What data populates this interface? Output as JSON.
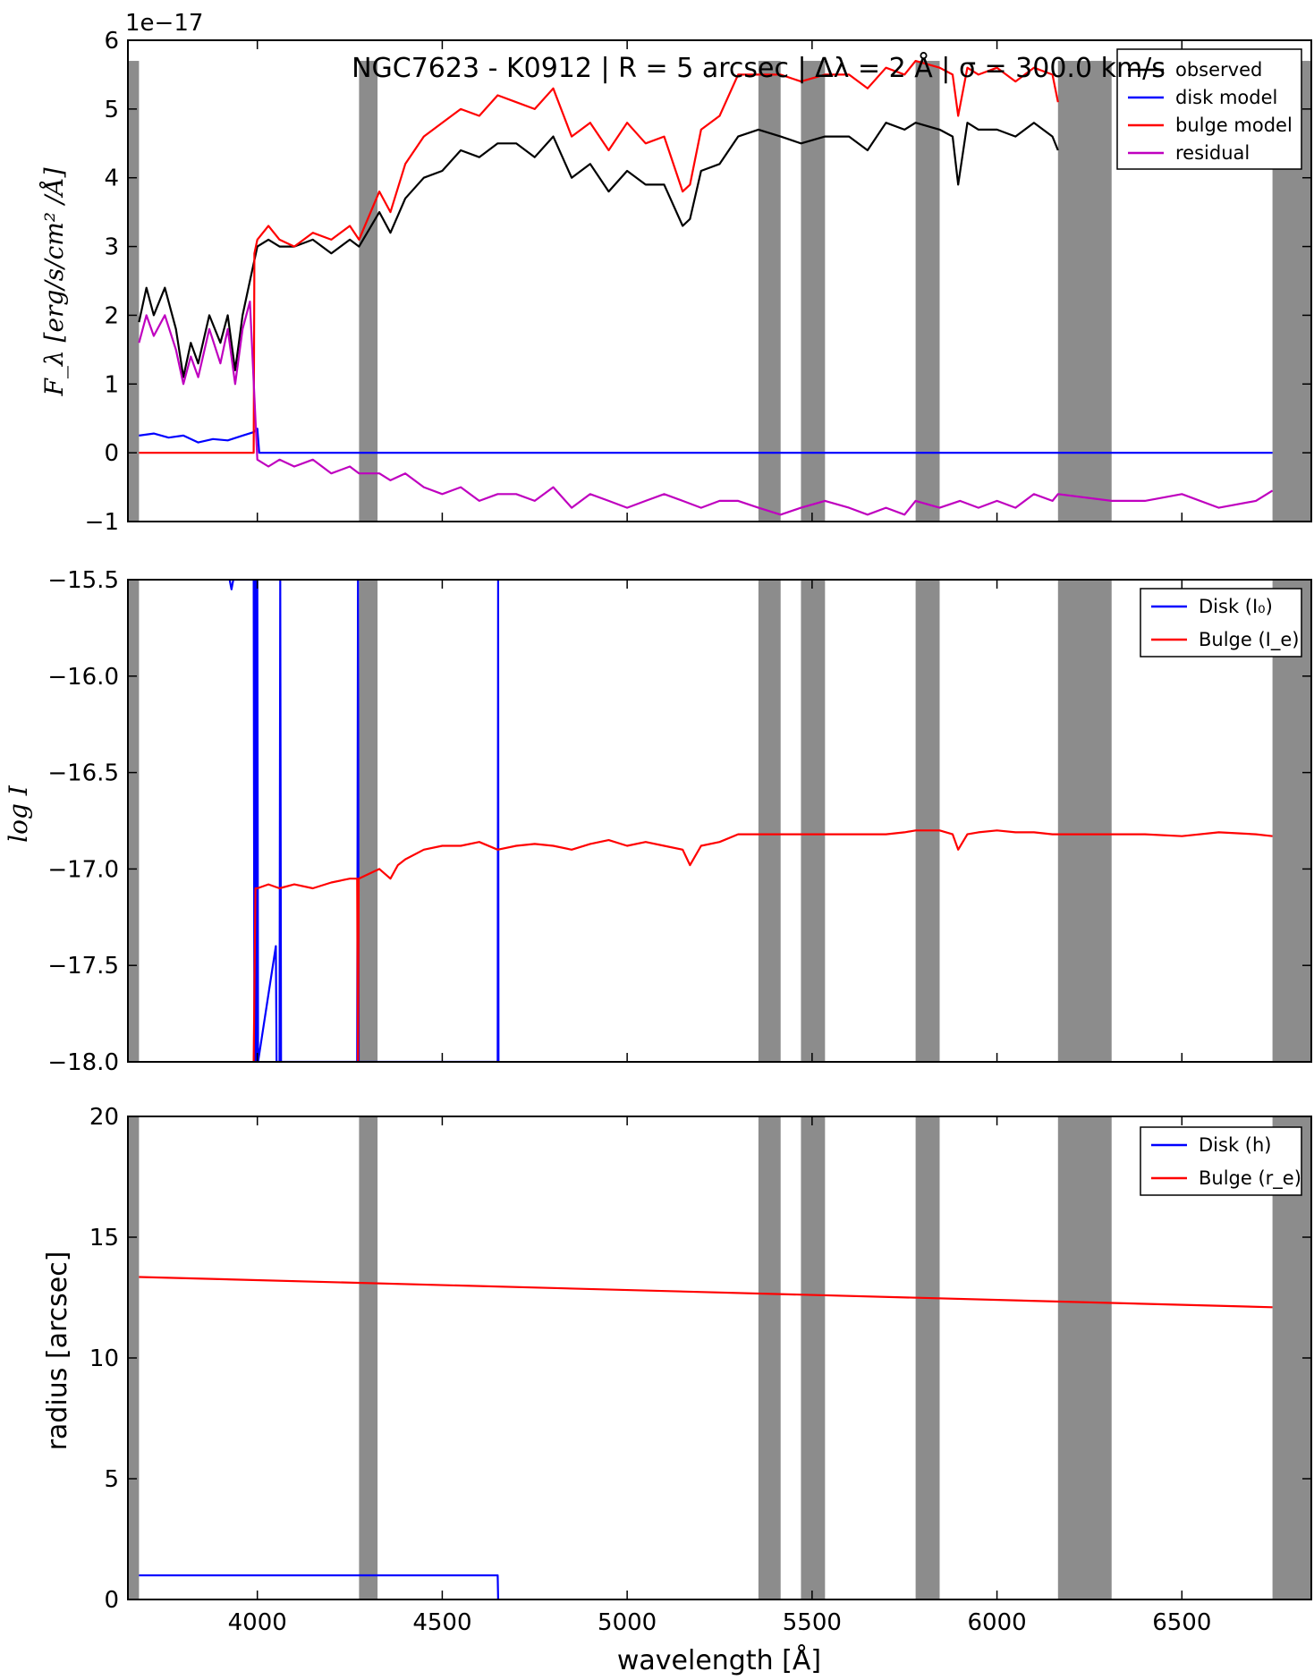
{
  "chart_data": [
    {
      "type": "line",
      "title": "NGC7623 - K0912 | R = 5 arcsec | Δλ = 2 Å | σ = 300.0 km/s",
      "xlabel": "",
      "ylabel": "F_λ [erg/s/cm² /Å]",
      "y_offset_label": "1e−17",
      "xlim": [
        3650,
        6850
      ],
      "ylim": [
        -1,
        6
      ],
      "yticks": [
        -1,
        0,
        1,
        2,
        3,
        4,
        5,
        6
      ],
      "ytick_labels": [
        "−1",
        "0",
        "1",
        "2",
        "3",
        "4",
        "5",
        "6"
      ],
      "grid": false,
      "legend_placement": "top-right",
      "masked_regions": [
        [
          3650,
          3680
        ],
        [
          4275,
          4325
        ],
        [
          5355,
          5415
        ],
        [
          5470,
          5535
        ],
        [
          5780,
          5845
        ],
        [
          6165,
          6310
        ],
        [
          6745,
          6850
        ]
      ],
      "series": [
        {
          "name": "observed",
          "color": "#000000",
          "x": [
            3680,
            3700,
            3720,
            3750,
            3780,
            3800,
            3820,
            3840,
            3870,
            3900,
            3920,
            3940,
            3960,
            3980,
            4000,
            4030,
            4060,
            4100,
            4150,
            4200,
            4250,
            4275,
            4330,
            4360,
            4400,
            4450,
            4500,
            4550,
            4600,
            4650,
            4700,
            4750,
            4800,
            4850,
            4900,
            4950,
            5000,
            5050,
            5100,
            5150,
            5170,
            5200,
            5250,
            5300,
            5355,
            5415,
            5470,
            5535,
            5600,
            5650,
            5700,
            5750,
            5780,
            5845,
            5880,
            5895,
            5920,
            5950,
            6000,
            6050,
            6100,
            6150,
            6165
          ],
          "y": [
            1.9,
            2.4,
            2.0,
            2.4,
            1.8,
            1.1,
            1.6,
            1.3,
            2.0,
            1.6,
            2.0,
            1.2,
            2.0,
            2.5,
            3.0,
            3.1,
            3.0,
            3.0,
            3.1,
            2.9,
            3.1,
            3.0,
            3.5,
            3.2,
            3.7,
            4.0,
            4.1,
            4.4,
            4.3,
            4.5,
            4.5,
            4.3,
            4.6,
            4.0,
            4.2,
            3.8,
            4.1,
            3.9,
            3.9,
            3.3,
            3.4,
            4.1,
            4.2,
            4.6,
            4.7,
            4.6,
            4.5,
            4.6,
            4.6,
            4.4,
            4.8,
            4.7,
            4.8,
            4.7,
            4.6,
            3.9,
            4.8,
            4.7,
            4.7,
            4.6,
            4.8,
            4.6,
            4.4
          ]
        },
        {
          "name": "disk model",
          "color": "#0000ff",
          "x": [
            3680,
            3720,
            3760,
            3800,
            3840,
            3880,
            3920,
            3960,
            3990,
            4000,
            4005,
            4275,
            4330,
            6745
          ],
          "y": [
            0.25,
            0.28,
            0.22,
            0.25,
            0.15,
            0.2,
            0.18,
            0.25,
            0.3,
            0.35,
            0.0,
            0.0,
            0.0,
            0.0
          ]
        },
        {
          "name": "bulge model",
          "color": "#ff0000",
          "x": [
            3680,
            3990,
            3992,
            4000,
            4030,
            4060,
            4100,
            4150,
            4200,
            4250,
            4275,
            4330,
            4360,
            4400,
            4450,
            4500,
            4550,
            4600,
            4650,
            4700,
            4750,
            4800,
            4850,
            4900,
            4950,
            5000,
            5050,
            5100,
            5150,
            5170,
            5200,
            5250,
            5300,
            5355,
            5415,
            5470,
            5535,
            5600,
            5650,
            5700,
            5750,
            5780,
            5845,
            5880,
            5895,
            5920,
            5950,
            6000,
            6050,
            6100,
            6150,
            6165
          ],
          "y": [
            0.0,
            0.0,
            2.9,
            3.1,
            3.3,
            3.1,
            3.0,
            3.2,
            3.1,
            3.3,
            3.1,
            3.8,
            3.5,
            4.2,
            4.6,
            4.8,
            5.0,
            4.9,
            5.2,
            5.1,
            5.0,
            5.3,
            4.6,
            4.8,
            4.4,
            4.8,
            4.5,
            4.6,
            3.8,
            3.9,
            4.7,
            4.9,
            5.5,
            5.5,
            5.5,
            5.4,
            5.5,
            5.5,
            5.3,
            5.6,
            5.5,
            5.7,
            5.6,
            5.5,
            4.9,
            5.6,
            5.5,
            5.6,
            5.4,
            5.6,
            5.5,
            5.1
          ]
        },
        {
          "name": "residual",
          "color": "#bf00bf",
          "x": [
            3680,
            3700,
            3720,
            3750,
            3780,
            3800,
            3820,
            3840,
            3870,
            3900,
            3920,
            3940,
            3960,
            3980,
            4000,
            4030,
            4060,
            4100,
            4150,
            4200,
            4250,
            4275,
            4330,
            4360,
            4400,
            4450,
            4500,
            4550,
            4600,
            4650,
            4700,
            4750,
            4800,
            4850,
            4900,
            4950,
            5000,
            5050,
            5100,
            5150,
            5200,
            5250,
            5300,
            5355,
            5415,
            5470,
            5535,
            5600,
            5650,
            5700,
            5750,
            5780,
            5845,
            5900,
            5950,
            6000,
            6050,
            6100,
            6150,
            6165,
            6310,
            6400,
            6500,
            6600,
            6700,
            6745
          ],
          "y": [
            1.6,
            2.0,
            1.7,
            2.0,
            1.5,
            1.0,
            1.4,
            1.1,
            1.8,
            1.3,
            1.8,
            1.0,
            1.8,
            2.2,
            -0.1,
            -0.2,
            -0.1,
            -0.2,
            -0.1,
            -0.3,
            -0.2,
            -0.3,
            -0.3,
            -0.4,
            -0.3,
            -0.5,
            -0.6,
            -0.5,
            -0.7,
            -0.6,
            -0.6,
            -0.7,
            -0.5,
            -0.8,
            -0.6,
            -0.7,
            -0.8,
            -0.7,
            -0.6,
            -0.7,
            -0.8,
            -0.7,
            -0.7,
            -0.8,
            -0.9,
            -0.8,
            -0.7,
            -0.8,
            -0.9,
            -0.8,
            -0.9,
            -0.7,
            -0.8,
            -0.7,
            -0.8,
            -0.7,
            -0.8,
            -0.6,
            -0.7,
            -0.6,
            -0.7,
            -0.7,
            -0.6,
            -0.8,
            -0.7,
            -0.55
          ]
        }
      ]
    },
    {
      "type": "line",
      "title": "",
      "xlabel": "",
      "ylabel": "log I",
      "xlim": [
        3650,
        6850
      ],
      "ylim": [
        -18.0,
        -15.5
      ],
      "yticks": [
        -18.0,
        -17.5,
        -17.0,
        -16.5,
        -16.0,
        -15.5
      ],
      "ytick_labels": [
        "−18.0",
        "−17.5",
        "−17.0",
        "−16.5",
        "−16.0",
        "−15.5"
      ],
      "grid": false,
      "legend_placement": "top-right",
      "masked_regions": [
        [
          3650,
          3680
        ],
        [
          4275,
          4325
        ],
        [
          5355,
          5415
        ],
        [
          5470,
          5535
        ],
        [
          5780,
          5845
        ],
        [
          6165,
          6310
        ],
        [
          6745,
          6850
        ]
      ],
      "series": [
        {
          "name": "Disk (I₀)",
          "color": "#0000ff",
          "x": [
            3925,
            3930,
            3935,
            3990,
            3992,
            3995,
            3997,
            4000,
            4002,
            4050,
            4052,
            4060,
            4062,
            4064,
            4270,
            4272,
            4274,
            4650,
            4651,
            4652,
            4653
          ],
          "y": [
            -15.5,
            -15.55,
            -15.5,
            -15.5,
            -18.0,
            -15.5,
            -18.0,
            -15.5,
            -18.0,
            -17.4,
            -18.0,
            -18.0,
            -15.5,
            -18.0,
            -18.0,
            -15.5,
            -18.0,
            -18.0,
            -15.5,
            -18.0,
            -18.0
          ]
        },
        {
          "name": "Bulge (I_e)",
          "color": "#ff0000",
          "x": [
            3990,
            3995,
            4000,
            4030,
            4060,
            4100,
            4150,
            4200,
            4250,
            4270,
            4272,
            4274,
            4330,
            4360,
            4380,
            4400,
            4450,
            4500,
            4550,
            4600,
            4650,
            4700,
            4750,
            4800,
            4850,
            4900,
            4950,
            5000,
            5050,
            5100,
            5150,
            5170,
            5200,
            5250,
            5300,
            5355,
            5415,
            5470,
            5535,
            5600,
            5650,
            5700,
            5750,
            5780,
            5845,
            5880,
            5895,
            5920,
            5950,
            6000,
            6050,
            6100,
            6150,
            6165,
            6310,
            6400,
            6500,
            6600,
            6700,
            6745
          ],
          "y": [
            -18.0,
            -17.1,
            -17.1,
            -17.08,
            -17.1,
            -17.08,
            -17.1,
            -17.07,
            -17.05,
            -17.05,
            -18.0,
            -17.05,
            -17.0,
            -17.05,
            -16.98,
            -16.95,
            -16.9,
            -16.88,
            -16.88,
            -16.86,
            -16.9,
            -16.88,
            -16.87,
            -16.88,
            -16.9,
            -16.87,
            -16.85,
            -16.88,
            -16.86,
            -16.88,
            -16.9,
            -16.98,
            -16.88,
            -16.86,
            -16.82,
            -16.82,
            -16.82,
            -16.82,
            -16.82,
            -16.82,
            -16.82,
            -16.82,
            -16.81,
            -16.8,
            -16.8,
            -16.82,
            -16.9,
            -16.82,
            -16.81,
            -16.8,
            -16.81,
            -16.81,
            -16.82,
            -16.82,
            -16.82,
            -16.82,
            -16.83,
            -16.81,
            -16.82,
            -16.83
          ]
        }
      ]
    },
    {
      "type": "line",
      "title": "",
      "xlabel": "wavelength [Å]",
      "ylabel": "radius [arcsec]",
      "xlim": [
        3650,
        6850
      ],
      "ylim": [
        0,
        20
      ],
      "xticks": [
        4000,
        4500,
        5000,
        5500,
        6000,
        6500
      ],
      "xtick_labels": [
        "4000",
        "4500",
        "5000",
        "5500",
        "6000",
        "6500"
      ],
      "yticks": [
        0,
        5,
        10,
        15,
        20
      ],
      "ytick_labels": [
        "0",
        "5",
        "10",
        "15",
        "20"
      ],
      "grid": false,
      "legend_placement": "top-right",
      "masked_regions": [
        [
          3650,
          3680
        ],
        [
          4275,
          4325
        ],
        [
          5355,
          5415
        ],
        [
          5470,
          5535
        ],
        [
          5780,
          5845
        ],
        [
          6165,
          6310
        ],
        [
          6745,
          6850
        ]
      ],
      "series": [
        {
          "name": "Disk (h)",
          "color": "#0000ff",
          "x": [
            3680,
            4650,
            4651
          ],
          "y": [
            1.0,
            1.0,
            0.0
          ]
        },
        {
          "name": "Bulge (r_e)",
          "color": "#ff0000",
          "x": [
            3680,
            6745
          ],
          "y": [
            13.35,
            12.1
          ]
        }
      ]
    }
  ]
}
